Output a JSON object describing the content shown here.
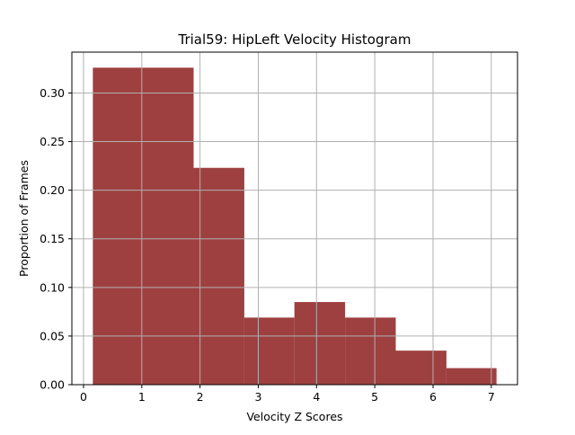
{
  "chart_data": {
    "type": "bar",
    "title": "Trial59: HipLeft Velocity Histogram",
    "xlabel": "Velocity Z Scores",
    "ylabel": "Proportion of Frames",
    "xlim": [
      -0.2,
      7.45
    ],
    "ylim": [
      0,
      0.342
    ],
    "xticks": [
      0,
      1,
      2,
      3,
      4,
      5,
      6,
      7
    ],
    "xtick_labels": [
      "0",
      "1",
      "2",
      "3",
      "4",
      "5",
      "6",
      "7"
    ],
    "yticks": [
      0,
      0.05,
      0.1,
      0.15,
      0.2,
      0.25,
      0.3
    ],
    "ytick_labels": [
      "0.00",
      "0.05",
      "0.10",
      "0.15",
      "0.20",
      "0.25",
      "0.30"
    ],
    "grid": true,
    "bar_color": "#9e4040",
    "bins": [
      {
        "x0": 0.16,
        "x1": 1.89,
        "value": 0.326
      },
      {
        "x0": 1.89,
        "x1": 2.76,
        "value": 0.223
      },
      {
        "x0": 2.76,
        "x1": 3.62,
        "value": 0.069
      },
      {
        "x0": 3.62,
        "x1": 4.49,
        "value": 0.085
      },
      {
        "x0": 4.49,
        "x1": 5.36,
        "value": 0.069
      },
      {
        "x0": 5.36,
        "x1": 6.23,
        "value": 0.035
      },
      {
        "x0": 6.23,
        "x1": 7.09,
        "value": 0.017
      }
    ]
  }
}
